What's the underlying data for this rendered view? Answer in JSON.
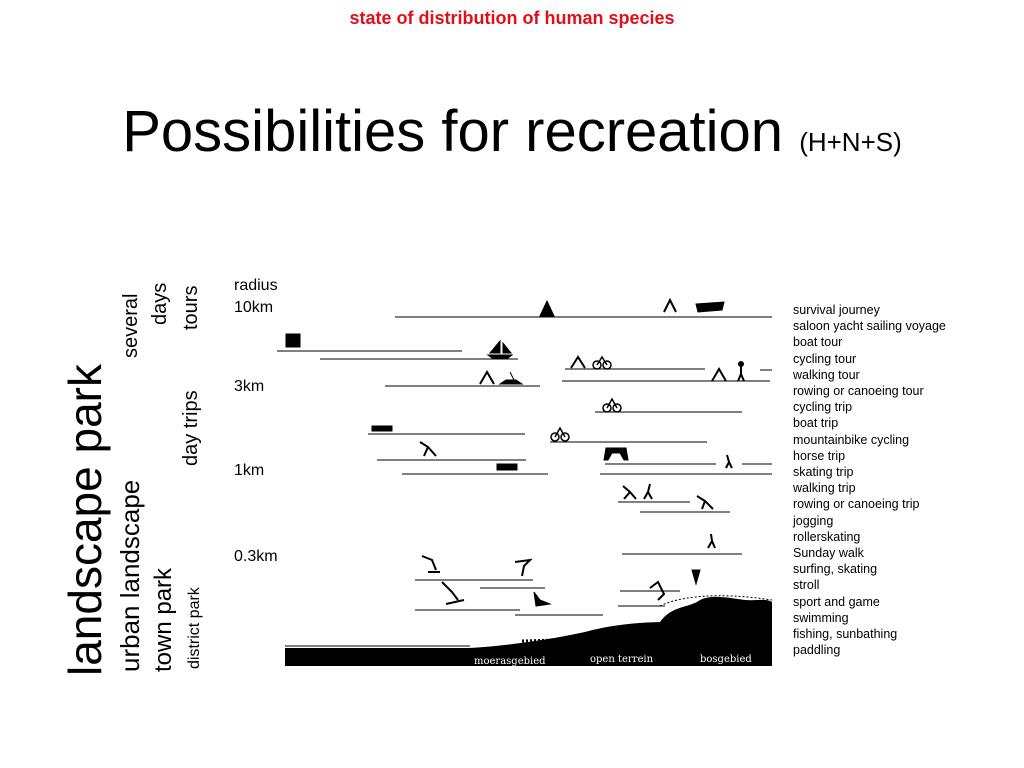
{
  "slide": {
    "caption": "state of distribution of human species",
    "title": "Possibilities for recreation",
    "title_suffix": "(H+N+S)"
  },
  "scale_labels": {
    "landscape_park": "landscape park",
    "urban_landscape": "urban landscape",
    "town_park": "town park",
    "district_park": "district park",
    "several": "several",
    "days": "days",
    "tours": "tours",
    "day_trips": "day trips"
  },
  "radius": {
    "heading": "radius",
    "r10": "10km",
    "r3": "3km",
    "r1": "1km",
    "r03": "0.3km"
  },
  "activities": [
    "survival journey",
    "saloon yacht sailing voyage",
    "boat tour",
    "cycling tour",
    "walking tour",
    "rowing or canoeing tour",
    "cycling trip",
    "boat trip",
    "mountainbike cycling",
    "horse trip",
    "skating trip",
    "walking trip",
    "rowing or canoeing trip",
    "jogging",
    "rollerskating",
    "Sunday walk",
    "surfing, skating",
    "stroll",
    "sport and game",
    "swimming",
    "fishing, sunbathing",
    "paddling"
  ],
  "terrain": {
    "marsh": "moerasgebied",
    "open": "open terrein",
    "forest": "bosgebied"
  },
  "icons": [
    "tent-icon",
    "boat-icon",
    "train-icon",
    "sailboat-icon",
    "bicycle-icon",
    "walker-icon",
    "canoe-icon",
    "skater-icon",
    "horse-rider-icon",
    "jogger-icon",
    "surfer-icon",
    "swimmer-icon",
    "fisher-icon"
  ]
}
